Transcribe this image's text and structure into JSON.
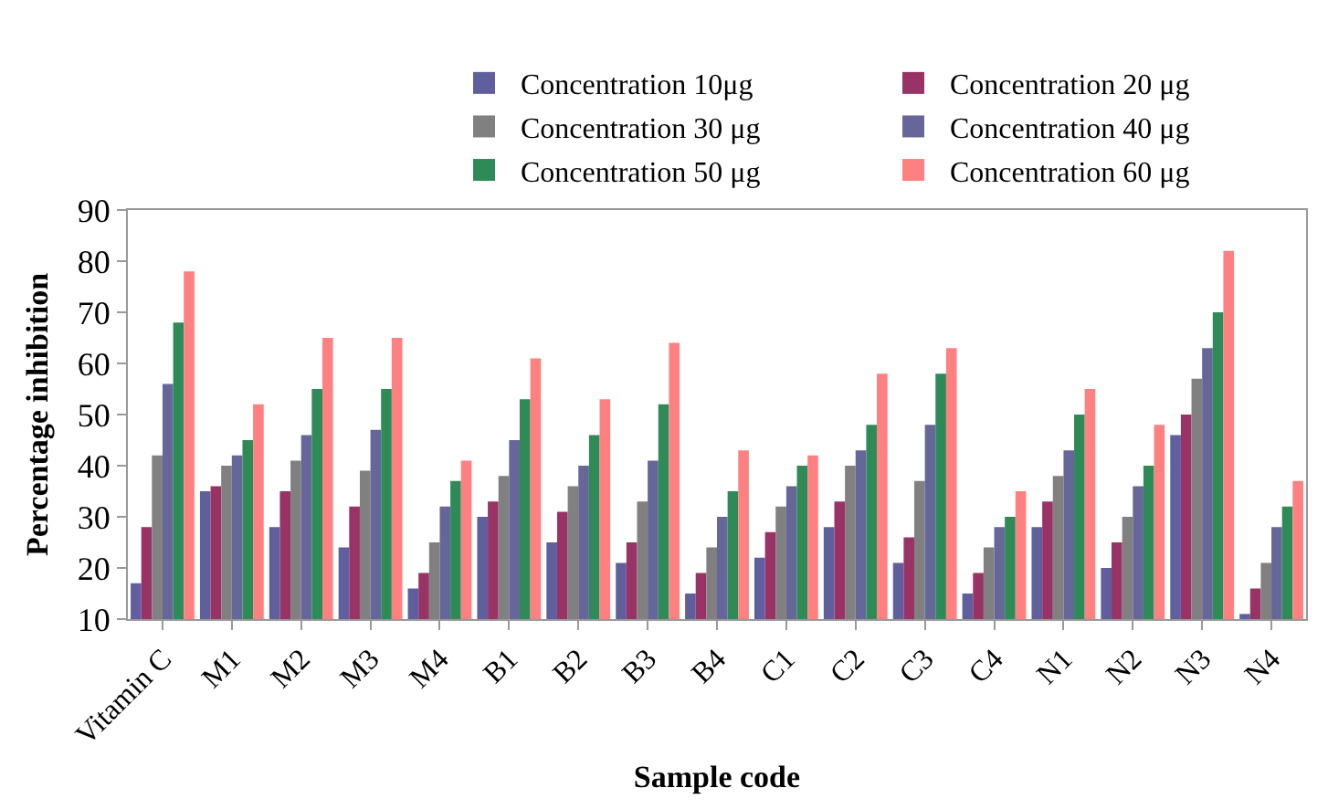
{
  "chart_data": {
    "type": "bar",
    "xlabel": "Sample code",
    "ylabel": "Percentage inhibition",
    "categories": [
      "Vitamin C",
      "M1",
      "M2",
      "M3",
      "M4",
      "B1",
      "B2",
      "B3",
      "B4",
      "C1",
      "C2",
      "C3",
      "C4",
      "N1",
      "N2",
      "N3",
      "N4"
    ],
    "series": [
      {
        "name": "Concentration 10μg",
        "color": "#5f5f9e",
        "values": [
          17,
          35,
          28,
          24,
          16,
          30,
          25,
          21,
          15,
          22,
          28,
          21,
          15,
          28,
          20,
          46,
          11
        ]
      },
      {
        "name": "Concentration 20 μg",
        "color": "#993366",
        "values": [
          28,
          36,
          35,
          32,
          19,
          33,
          31,
          25,
          19,
          27,
          33,
          26,
          19,
          33,
          25,
          50,
          16
        ]
      },
      {
        "name": "Concentration 30 μg",
        "color": "#808080",
        "values": [
          42,
          40,
          41,
          39,
          25,
          38,
          36,
          33,
          24,
          32,
          40,
          37,
          24,
          38,
          30,
          57,
          21
        ]
      },
      {
        "name": "Concentration 40 μg",
        "color": "#666699",
        "values": [
          56,
          42,
          46,
          47,
          32,
          45,
          40,
          41,
          30,
          36,
          43,
          48,
          28,
          43,
          36,
          63,
          28
        ]
      },
      {
        "name": "Concentration 50 μg",
        "color": "#2e8b57",
        "values": [
          68,
          45,
          55,
          55,
          37,
          53,
          46,
          52,
          35,
          40,
          48,
          58,
          30,
          50,
          40,
          70,
          32
        ]
      },
      {
        "name": "Concentration 60 μg",
        "color": "#ff8080",
        "values": [
          78,
          52,
          65,
          65,
          41,
          61,
          53,
          64,
          43,
          42,
          58,
          63,
          35,
          55,
          48,
          82,
          37
        ]
      }
    ],
    "ylim": [
      10,
      90
    ],
    "yticks": [
      10,
      20,
      30,
      40,
      50,
      60,
      70,
      80,
      90
    ],
    "grid": false,
    "legend": "top right"
  }
}
